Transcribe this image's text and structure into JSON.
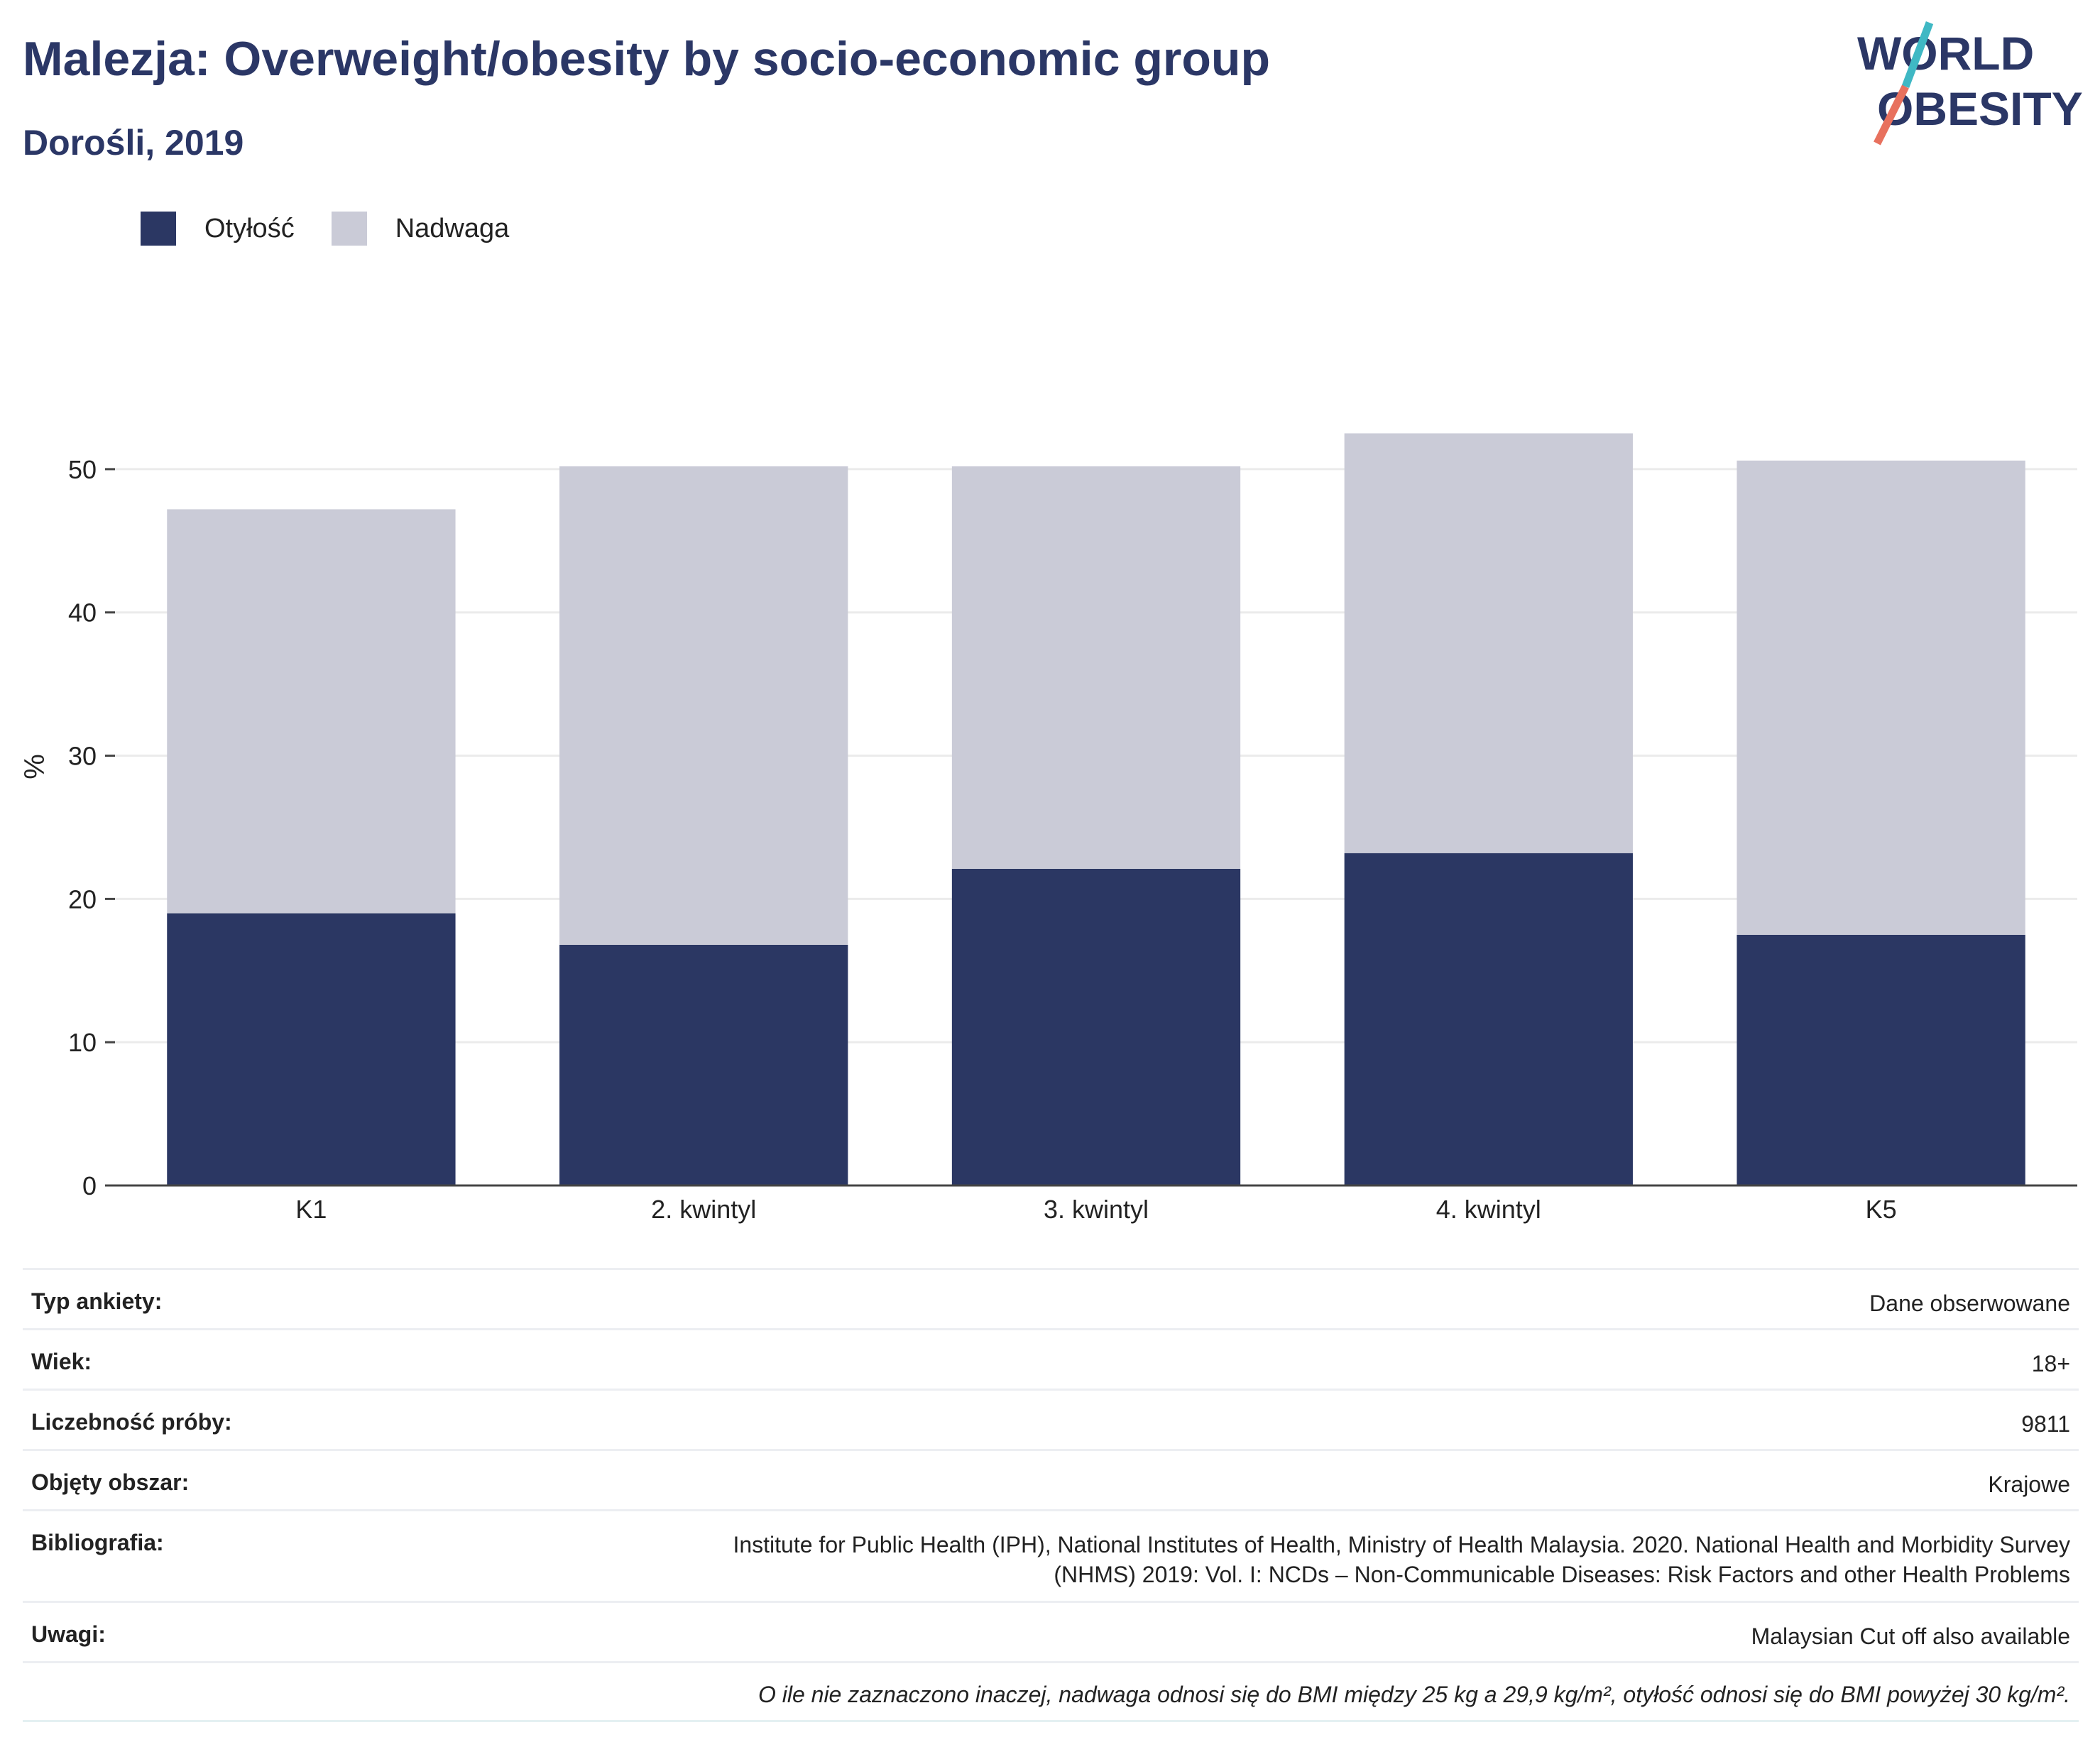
{
  "header": {
    "title": "Malezja: Overweight/obesity by socio-economic group",
    "subtitle": "Dorośli, 2019"
  },
  "logo": {
    "line1": "WORLD",
    "line2": "OBESITY",
    "colors": {
      "text": "#2b3766",
      "slash_top": "#3fb8c4",
      "slash_bottom": "#e8715e"
    }
  },
  "legend": {
    "items": [
      {
        "label": "Otyłość",
        "color": "#2b3763"
      },
      {
        "label": "Nadwaga",
        "color": "#cacbd7"
      }
    ]
  },
  "chart_data": {
    "type": "bar",
    "stacked": true,
    "categories": [
      "K1",
      "2. kwintyl",
      "3. kwintyl",
      "4. kwintyl",
      "K5"
    ],
    "series": [
      {
        "name": "Otyłość",
        "color": "#2b3763",
        "values": [
          19.0,
          16.8,
          22.1,
          23.2,
          17.5
        ]
      },
      {
        "name": "Nadwaga",
        "color": "#cacbd7",
        "values": [
          28.2,
          33.4,
          28.1,
          29.3,
          33.1
        ]
      }
    ],
    "ylabel": "%",
    "ylim": [
      0,
      55
    ],
    "yticks": [
      0,
      10,
      20,
      30,
      40,
      50
    ],
    "grid": true,
    "legend_position": "top-left"
  },
  "info": {
    "rows": [
      {
        "key": "Typ ankiety:",
        "value": "Dane obserwowane"
      },
      {
        "key": "Wiek:",
        "value": "18+"
      },
      {
        "key": "Liczebność próby:",
        "value": "9811"
      },
      {
        "key": "Objęty obszar:",
        "value": "Krajowe"
      },
      {
        "key": "Bibliografia:",
        "value_line1": "Institute for Public Health (IPH), National Institutes of Health, Ministry of Health Malaysia. 2020. National Health and Morbidity Survey",
        "value_line2": "(NHMS) 2019: Vol. I: NCDs – Non-Communicable Diseases: Risk Factors and other Health Problems"
      },
      {
        "key": "Uwagi:",
        "value": "Malaysian Cut off also available"
      }
    ],
    "footnote": "O ile nie zaznaczono inaczej, nadwaga odnosi się do BMI między 25 kg a 29,9 kg/m², otyłość odnosi się do BMI powyżej 30 kg/m²."
  }
}
